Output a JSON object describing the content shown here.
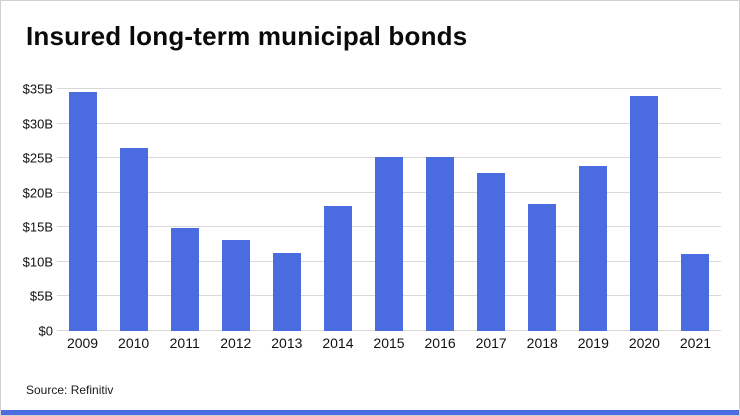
{
  "title": "Insured long-term municipal bonds",
  "source": "Source: Refinitiv",
  "colors": {
    "bar": "#4a6ce0",
    "accent_strip": "#4a6ce0",
    "gridline": "#d9d9d9",
    "text": "#000000"
  },
  "chart_data": {
    "type": "bar",
    "title": "Insured long-term municipal bonds",
    "categories": [
      "2009",
      "2010",
      "2011",
      "2012",
      "2013",
      "2014",
      "2015",
      "2016",
      "2017",
      "2018",
      "2019",
      "2020",
      "2021"
    ],
    "values": [
      34.5,
      26.4,
      14.9,
      13.2,
      11.3,
      18.1,
      25.1,
      25.2,
      22.9,
      18.4,
      23.8,
      34.0,
      11.1
    ],
    "xlabel": "",
    "ylabel": "",
    "ylim": [
      0,
      35
    ],
    "ytick_step": 5,
    "ytick_labels": [
      "$0",
      "$5B",
      "$10B",
      "$15B",
      "$20B",
      "$25B",
      "$30B",
      "$35B"
    ],
    "grid": true,
    "legend": "none",
    "unit": "billion USD"
  }
}
